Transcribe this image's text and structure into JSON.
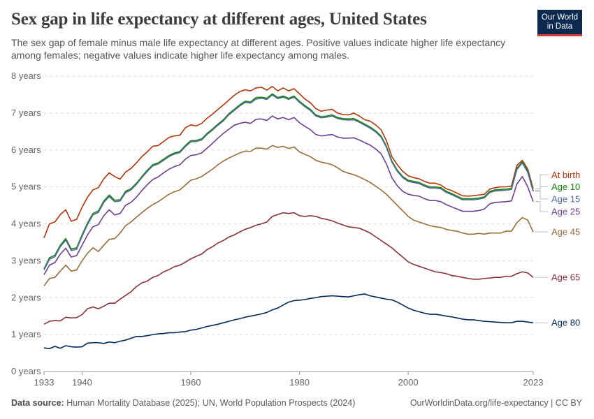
{
  "header": {
    "title": "Sex gap in life expectancy at different ages, United States",
    "subtitle": "The sex gap of female minus male life expectancy at different ages. Positive values indicate higher life expectancy among females; negative values indicate higher life expectancy among males."
  },
  "logo": {
    "line1": "Our World",
    "line2": "in Data",
    "bar_color": "#d73b31",
    "bg_color": "#0c2a4f"
  },
  "footer": {
    "source_label": "Data source:",
    "source_text": "Human Mortality Database (2025); UN, World Population Prospects (2024)",
    "credit": "OurWorldinData.org/life-expectancy | CC BY"
  },
  "chart_data": {
    "type": "line",
    "title": "Sex gap in life expectancy at different ages, United States",
    "xlabel": "",
    "ylabel": "",
    "xlim": [
      1933,
      2023
    ],
    "ylim": [
      0,
      8
    ],
    "grid": true,
    "y_ticks": [
      0,
      1,
      2,
      3,
      4,
      5,
      6,
      7,
      8
    ],
    "y_tick_labels": [
      "0 years",
      "1 years",
      "2 years",
      "3 years",
      "4 years",
      "5 years",
      "6 years",
      "7 years",
      "8 years"
    ],
    "x_ticks": [
      1933,
      1940,
      1960,
      1980,
      2000,
      2023
    ],
    "x_tick_labels": [
      "1933",
      "1940",
      "1960",
      "1980",
      "2000",
      "2023"
    ],
    "legend_position": "right",
    "x": [
      1933,
      1934,
      1935,
      1936,
      1937,
      1938,
      1939,
      1940,
      1941,
      1942,
      1943,
      1944,
      1945,
      1946,
      1947,
      1948,
      1949,
      1950,
      1951,
      1952,
      1953,
      1954,
      1955,
      1956,
      1957,
      1958,
      1959,
      1960,
      1961,
      1962,
      1963,
      1964,
      1965,
      1966,
      1967,
      1968,
      1969,
      1970,
      1971,
      1972,
      1973,
      1974,
      1975,
      1976,
      1977,
      1978,
      1979,
      1980,
      1981,
      1982,
      1983,
      1984,
      1985,
      1986,
      1987,
      1988,
      1989,
      1990,
      1991,
      1992,
      1993,
      1994,
      1995,
      1996,
      1997,
      1998,
      1999,
      2000,
      2001,
      2002,
      2003,
      2004,
      2005,
      2006,
      2007,
      2008,
      2009,
      2010,
      2011,
      2012,
      2013,
      2014,
      2015,
      2016,
      2017,
      2018,
      2019,
      2020,
      2021,
      2022,
      2023
    ],
    "series": [
      {
        "name": "At birth",
        "color": "#b13507",
        "values": [
          3.62,
          4.0,
          4.05,
          4.25,
          4.38,
          4.07,
          4.12,
          4.45,
          4.72,
          4.92,
          4.98,
          5.22,
          5.38,
          5.28,
          5.21,
          5.4,
          5.5,
          5.65,
          5.82,
          5.95,
          6.1,
          6.12,
          6.23,
          6.34,
          6.38,
          6.4,
          6.6,
          6.68,
          6.65,
          6.72,
          6.86,
          6.97,
          7.1,
          7.22,
          7.35,
          7.48,
          7.58,
          7.63,
          7.6,
          7.68,
          7.7,
          7.62,
          7.72,
          7.6,
          7.68,
          7.6,
          7.66,
          7.52,
          7.38,
          7.28,
          7.12,
          7.05,
          7.08,
          7.1,
          7.0,
          6.96,
          6.95,
          7.0,
          6.92,
          6.82,
          6.78,
          6.68,
          6.55,
          6.25,
          5.82,
          5.6,
          5.42,
          5.3,
          5.25,
          5.22,
          5.15,
          5.1,
          5.1,
          5.05,
          4.95,
          4.9,
          4.83,
          4.76,
          4.75,
          4.76,
          4.78,
          4.8,
          4.94,
          4.98,
          5.0,
          5.0,
          5.02,
          5.58,
          5.72,
          5.48,
          4.95
        ]
      },
      {
        "name": "Age 10",
        "color": "#18850e",
        "values": [
          2.78,
          3.08,
          3.15,
          3.42,
          3.6,
          3.32,
          3.35,
          3.7,
          4.02,
          4.28,
          4.35,
          4.62,
          4.78,
          4.64,
          4.65,
          4.88,
          4.95,
          5.1,
          5.28,
          5.45,
          5.6,
          5.65,
          5.75,
          5.85,
          5.92,
          5.96,
          6.12,
          6.25,
          6.26,
          6.3,
          6.45,
          6.57,
          6.7,
          6.82,
          6.98,
          7.1,
          7.22,
          7.32,
          7.3,
          7.42,
          7.43,
          7.4,
          7.52,
          7.42,
          7.46,
          7.4,
          7.46,
          7.32,
          7.2,
          7.1,
          6.95,
          6.9,
          6.92,
          6.95,
          6.88,
          6.85,
          6.84,
          6.85,
          6.78,
          6.7,
          6.62,
          6.52,
          6.38,
          6.1,
          5.7,
          5.45,
          5.28,
          5.18,
          5.15,
          5.12,
          5.05,
          5.0,
          5.0,
          4.98,
          4.88,
          4.82,
          4.75,
          4.68,
          4.68,
          4.68,
          4.7,
          4.73,
          4.88,
          4.92,
          4.93,
          4.94,
          4.96,
          5.5,
          5.68,
          5.42,
          4.9
        ]
      },
      {
        "name": "Age 15",
        "color": "#4c6a9c",
        "values": [
          2.75,
          3.04,
          3.11,
          3.38,
          3.56,
          3.28,
          3.31,
          3.66,
          3.98,
          4.24,
          4.31,
          4.58,
          4.74,
          4.6,
          4.62,
          4.84,
          4.92,
          5.07,
          5.25,
          5.42,
          5.57,
          5.62,
          5.72,
          5.82,
          5.89,
          5.93,
          6.09,
          6.22,
          6.23,
          6.27,
          6.42,
          6.54,
          6.67,
          6.79,
          6.95,
          7.07,
          7.19,
          7.29,
          7.27,
          7.38,
          7.4,
          7.37,
          7.49,
          7.39,
          7.43,
          7.37,
          7.43,
          7.29,
          7.17,
          7.07,
          6.92,
          6.87,
          6.89,
          6.92,
          6.85,
          6.82,
          6.81,
          6.82,
          6.75,
          6.67,
          6.59,
          6.49,
          6.35,
          6.07,
          5.67,
          5.42,
          5.25,
          5.15,
          5.12,
          5.09,
          5.02,
          4.97,
          4.97,
          4.95,
          4.85,
          4.79,
          4.72,
          4.65,
          4.65,
          4.65,
          4.67,
          4.7,
          4.85,
          4.89,
          4.9,
          4.91,
          4.93,
          5.47,
          5.65,
          5.39,
          4.88
        ]
      },
      {
        "name": "Age 25",
        "color": "#6d3e91",
        "values": [
          2.62,
          2.88,
          2.95,
          3.18,
          3.34,
          3.1,
          3.14,
          3.42,
          3.7,
          3.92,
          3.98,
          4.22,
          4.38,
          4.24,
          4.28,
          4.5,
          4.58,
          4.72,
          4.9,
          5.06,
          5.2,
          5.27,
          5.38,
          5.48,
          5.55,
          5.6,
          5.75,
          5.85,
          5.87,
          5.92,
          6.05,
          6.18,
          6.32,
          6.45,
          6.56,
          6.67,
          6.72,
          6.75,
          6.72,
          6.83,
          6.84,
          6.8,
          6.92,
          6.84,
          6.88,
          6.82,
          6.88,
          6.74,
          6.64,
          6.55,
          6.42,
          6.38,
          6.4,
          6.42,
          6.35,
          6.32,
          6.32,
          6.33,
          6.27,
          6.2,
          6.13,
          6.03,
          5.9,
          5.62,
          5.25,
          5.03,
          4.88,
          4.8,
          4.77,
          4.75,
          4.68,
          4.63,
          4.63,
          4.6,
          4.52,
          4.46,
          4.4,
          4.34,
          4.34,
          4.34,
          4.36,
          4.4,
          4.54,
          4.58,
          4.59,
          4.6,
          4.62,
          5.08,
          5.28,
          5.0,
          4.6
        ]
      },
      {
        "name": "Age 45",
        "color": "#996d39",
        "values": [
          2.32,
          2.52,
          2.55,
          2.72,
          2.88,
          2.72,
          2.75,
          3.0,
          3.2,
          3.35,
          3.25,
          3.42,
          3.58,
          3.6,
          3.75,
          3.95,
          4.05,
          4.18,
          4.3,
          4.42,
          4.52,
          4.6,
          4.7,
          4.8,
          4.87,
          4.92,
          5.05,
          5.18,
          5.22,
          5.28,
          5.38,
          5.48,
          5.6,
          5.7,
          5.78,
          5.85,
          5.92,
          5.97,
          5.96,
          6.05,
          6.05,
          6.02,
          6.12,
          6.07,
          6.1,
          6.04,
          6.08,
          5.95,
          5.88,
          5.82,
          5.72,
          5.67,
          5.64,
          5.6,
          5.52,
          5.42,
          5.37,
          5.33,
          5.27,
          5.2,
          5.12,
          5.02,
          4.92,
          4.8,
          4.65,
          4.5,
          4.35,
          4.2,
          4.1,
          4.05,
          4.0,
          3.95,
          3.92,
          3.9,
          3.85,
          3.82,
          3.8,
          3.75,
          3.72,
          3.72,
          3.74,
          3.72,
          3.75,
          3.75,
          3.75,
          3.8,
          3.8,
          4.03,
          4.17,
          4.1,
          3.78
        ]
      },
      {
        "name": "Age 65",
        "color": "#883039",
        "values": [
          1.28,
          1.36,
          1.38,
          1.37,
          1.47,
          1.45,
          1.46,
          1.54,
          1.7,
          1.75,
          1.7,
          1.77,
          1.85,
          1.85,
          1.96,
          2.06,
          2.16,
          2.3,
          2.4,
          2.45,
          2.55,
          2.6,
          2.7,
          2.76,
          2.84,
          2.88,
          2.96,
          3.05,
          3.12,
          3.18,
          3.3,
          3.38,
          3.48,
          3.55,
          3.64,
          3.7,
          3.78,
          3.85,
          3.9,
          3.96,
          4.0,
          4.05,
          4.2,
          4.25,
          4.3,
          4.28,
          4.3,
          4.22,
          4.2,
          4.22,
          4.2,
          4.15,
          4.12,
          4.08,
          4.02,
          3.97,
          3.92,
          3.9,
          3.88,
          3.82,
          3.75,
          3.65,
          3.55,
          3.45,
          3.35,
          3.22,
          3.1,
          2.97,
          2.9,
          2.85,
          2.8,
          2.75,
          2.7,
          2.68,
          2.65,
          2.6,
          2.58,
          2.55,
          2.52,
          2.5,
          2.5,
          2.52,
          2.53,
          2.55,
          2.55,
          2.58,
          2.58,
          2.65,
          2.7,
          2.67,
          2.55
        ]
      },
      {
        "name": "Age 80",
        "color": "#00295b",
        "values": [
          0.64,
          0.62,
          0.68,
          0.63,
          0.7,
          0.67,
          0.66,
          0.67,
          0.77,
          0.78,
          0.78,
          0.76,
          0.8,
          0.78,
          0.82,
          0.85,
          0.9,
          0.95,
          0.95,
          0.97,
          1.0,
          1.02,
          1.03,
          1.05,
          1.05,
          1.07,
          1.08,
          1.12,
          1.14,
          1.18,
          1.22,
          1.25,
          1.28,
          1.32,
          1.36,
          1.4,
          1.43,
          1.47,
          1.5,
          1.53,
          1.56,
          1.6,
          1.67,
          1.72,
          1.8,
          1.88,
          1.92,
          1.93,
          1.95,
          1.98,
          2.0,
          2.03,
          2.04,
          2.05,
          2.04,
          2.03,
          2.02,
          2.05,
          2.08,
          2.1,
          2.05,
          2.02,
          1.99,
          1.96,
          1.94,
          1.88,
          1.8,
          1.72,
          1.66,
          1.62,
          1.58,
          1.55,
          1.55,
          1.53,
          1.5,
          1.48,
          1.45,
          1.42,
          1.4,
          1.4,
          1.38,
          1.36,
          1.35,
          1.34,
          1.33,
          1.32,
          1.32,
          1.36,
          1.36,
          1.34,
          1.32
        ]
      }
    ],
    "legend_labels": [
      "At birth",
      "Age 10",
      "Age 15",
      "Age 25",
      "Age 45",
      "Age 65",
      "Age 80"
    ]
  }
}
